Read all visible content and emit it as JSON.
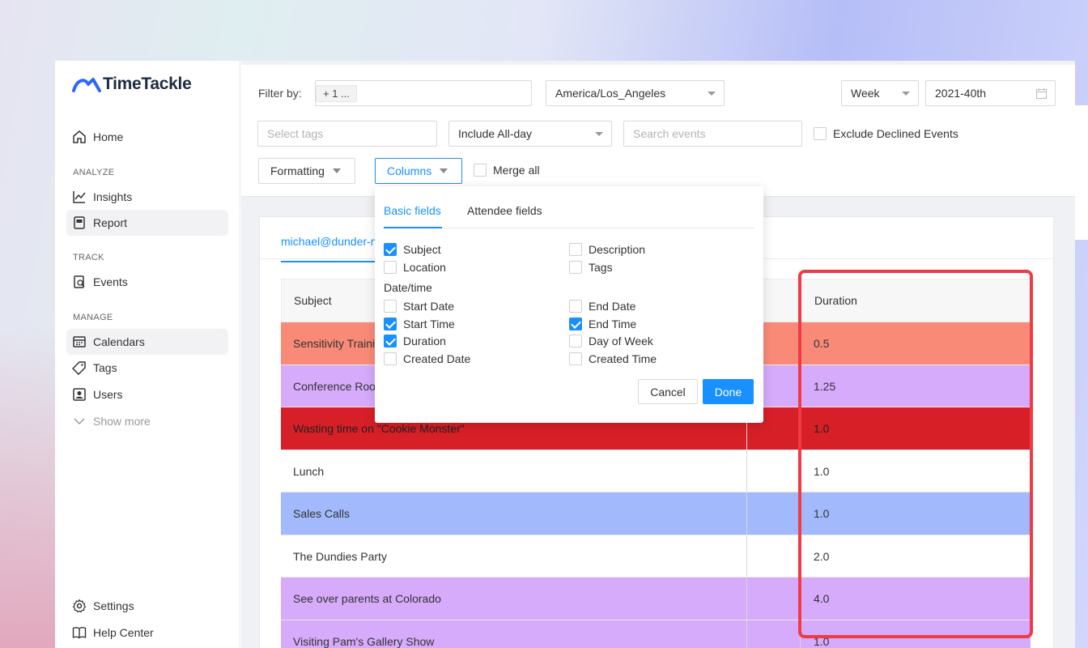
{
  "brand": {
    "logo_text": "TimeTackle"
  },
  "sidebar": {
    "home": "Home",
    "sections": {
      "analyze": "ANALYZE",
      "track": "TRACK",
      "manage": "MANAGE"
    },
    "insights": "Insights",
    "report": "Report",
    "events": "Events",
    "calendars": "Calendars",
    "tags": "Tags",
    "users": "Users",
    "show_more": "Show more",
    "settings": "Settings",
    "help_center": "Help Center"
  },
  "filters": {
    "filter_by_label": "Filter by:",
    "filter_chip": "+ 1 ...",
    "timezone": "America/Los_Angeles",
    "period": "Week",
    "date": "2021-40th",
    "tags_placeholder": "Select tags",
    "allday": "Include All-day",
    "search_placeholder": "Search events",
    "exclude_declined": "Exclude Declined Events",
    "formatting": "Formatting",
    "columns": "Columns",
    "merge_all": "Merge all"
  },
  "report": {
    "account_tab": "michael@dunder-mifflin",
    "headers": {
      "subject": "Subject",
      "duration": "Duration"
    },
    "rows": [
      {
        "subject": "Sensitivity Training",
        "duration": "0.5",
        "color": "#fa8a78",
        "text": "#333"
      },
      {
        "subject": "Conference Room Meeting",
        "duration": "1.25",
        "color": "#d6abfb",
        "text": "#333"
      },
      {
        "subject": "Wasting time on \"Cookie Monster\"",
        "duration": "1.0",
        "color": "#d71f27",
        "text": "#222"
      },
      {
        "subject": "Lunch",
        "duration": "1.0",
        "color": "#ffffff",
        "text": "#333"
      },
      {
        "subject": "Sales Calls",
        "duration": "1.0",
        "color": "#a2bafb",
        "text": "#333"
      },
      {
        "subject": "The Dundies Party",
        "duration": "2.0",
        "color": "#ffffff",
        "text": "#333"
      },
      {
        "subject": "See over parents at Colorado",
        "duration": "4.0",
        "color": "#d6abfb",
        "text": "#333"
      },
      {
        "subject": "Visiting Pam's Gallery Show",
        "duration": "1.0",
        "color": "#d6abfb",
        "text": "#333"
      }
    ]
  },
  "columns_popup": {
    "tabs": [
      "Basic fields",
      "Attendee fields"
    ],
    "basic": [
      {
        "label": "Subject",
        "checked": true
      },
      {
        "label": "Description",
        "checked": false
      },
      {
        "label": "Location",
        "checked": false
      },
      {
        "label": "Tags",
        "checked": false
      }
    ],
    "datetime_group": "Date/time",
    "datetime": [
      {
        "label": "Start Date",
        "checked": false
      },
      {
        "label": "End Date",
        "checked": false
      },
      {
        "label": "Start Time",
        "checked": true
      },
      {
        "label": "End Time",
        "checked": true
      },
      {
        "label": "Duration",
        "checked": true
      },
      {
        "label": "Day of Week",
        "checked": false
      },
      {
        "label": "Created Date",
        "checked": false
      },
      {
        "label": "Created Time",
        "checked": false
      }
    ],
    "cancel": "Cancel",
    "done": "Done"
  },
  "colors": {
    "accent": "#1890ff",
    "highlight": "#f03b46"
  }
}
